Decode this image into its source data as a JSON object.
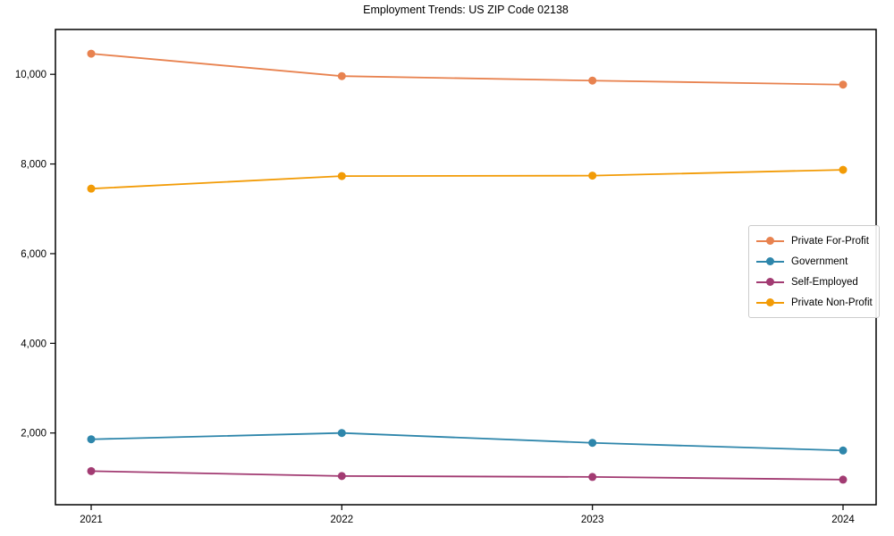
{
  "chart_data": {
    "type": "line",
    "title": "Employment Trends: US ZIP Code 02138",
    "xlabel": "",
    "ylabel": "",
    "x_categories": [
      "2021",
      "2022",
      "2023",
      "2024"
    ],
    "y_ticks": [
      2000,
      4000,
      6000,
      8000,
      10000
    ],
    "y_tick_labels": [
      "2,000",
      "4,000",
      "6,000",
      "8,000",
      "10,000"
    ],
    "ylim": [
      400,
      11000
    ],
    "grid": false,
    "legend_position": "center-right",
    "marker": "circle",
    "series": [
      {
        "name": "Private For-Profit",
        "color": "#E8824F",
        "values": [
          10460,
          9960,
          9860,
          9770
        ]
      },
      {
        "name": "Government",
        "color": "#2E86AB",
        "values": [
          1860,
          2000,
          1780,
          1610
        ]
      },
      {
        "name": "Self-Employed",
        "color": "#A23B72",
        "values": [
          1150,
          1040,
          1020,
          960
        ]
      },
      {
        "name": "Private Non-Profit",
        "color": "#F29B06",
        "values": [
          7450,
          7730,
          7740,
          7870
        ]
      }
    ]
  }
}
